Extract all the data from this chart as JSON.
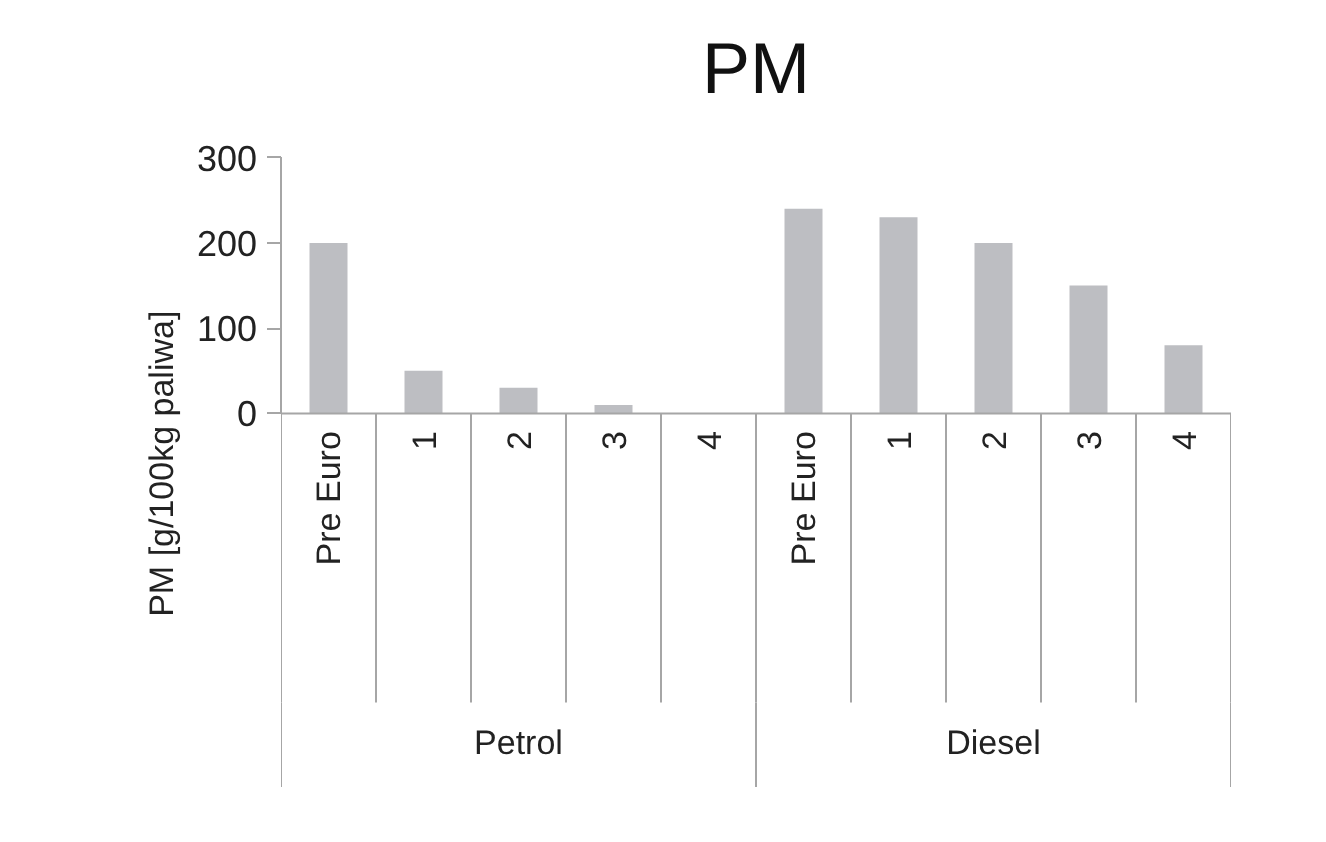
{
  "chart_data": {
    "type": "bar",
    "title": "PM",
    "ylabel": "PM [g/100kg  paliwa]",
    "categories": [
      "Pre Euro",
      "1",
      "2",
      "3",
      "4",
      "Pre Euro",
      "1",
      "2",
      "3",
      "4"
    ],
    "values": [
      200,
      50,
      30,
      10,
      0,
      240,
      230,
      200,
      150,
      80
    ],
    "color": "#bdbec2",
    "ylim": [
      0,
      300
    ],
    "yticks": [
      0,
      100,
      200,
      300
    ],
    "grid": false,
    "annotations": [
      "Petrol",
      "Diesel"
    ]
  }
}
